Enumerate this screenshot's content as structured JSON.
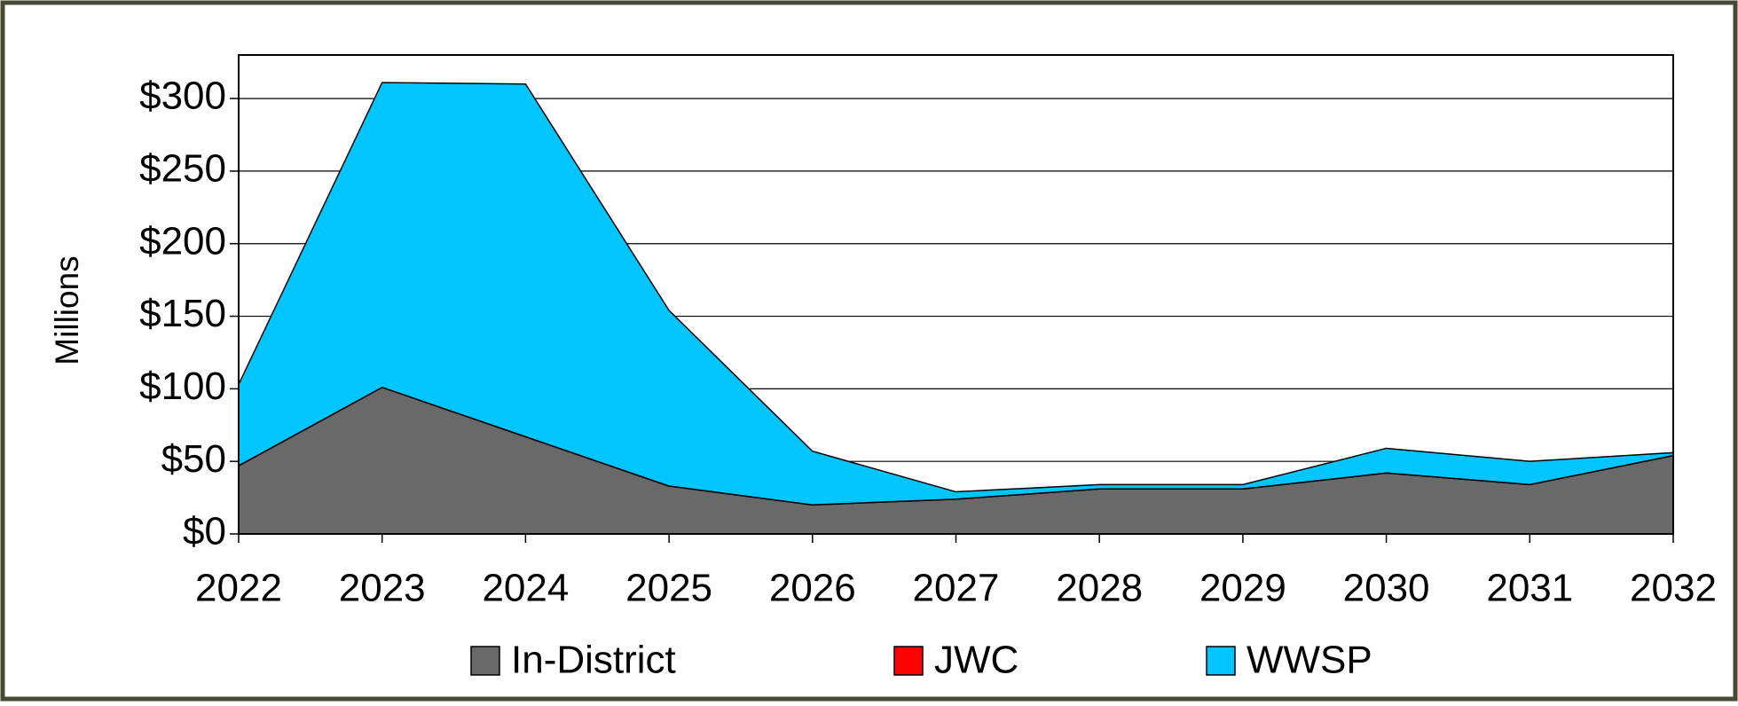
{
  "chart_data": {
    "type": "stacked_area",
    "y_label": "Millions",
    "categories": [
      "2022",
      "2023",
      "2024",
      "2025",
      "2026",
      "2027",
      "2028",
      "2029",
      "2030",
      "2031",
      "2032"
    ],
    "series": [
      {
        "name": "In-District",
        "color": "#696969",
        "values": [
          47,
          101,
          67,
          33,
          20,
          24,
          31,
          31,
          42,
          34,
          54
        ]
      },
      {
        "name": "JWC",
        "color": "#ff0000",
        "values": [
          0,
          0,
          0,
          0,
          0,
          0,
          0,
          0,
          0,
          0,
          0
        ]
      },
      {
        "name": "WWSP",
        "color": "#00c5ff",
        "values": [
          56,
          210,
          243,
          121,
          37,
          5,
          3,
          3,
          17,
          16,
          2
        ]
      }
    ],
    "ylim": [
      0,
      330
    ],
    "yticks": [
      {
        "value": 0,
        "label": "$0"
      },
      {
        "value": 50,
        "label": "$50"
      },
      {
        "value": 100,
        "label": "$100"
      },
      {
        "value": 150,
        "label": "$150"
      },
      {
        "value": 200,
        "label": "$200"
      },
      {
        "value": 250,
        "label": "$250"
      },
      {
        "value": 300,
        "label": "$300"
      }
    ],
    "grid": true,
    "legend": "bottom"
  }
}
